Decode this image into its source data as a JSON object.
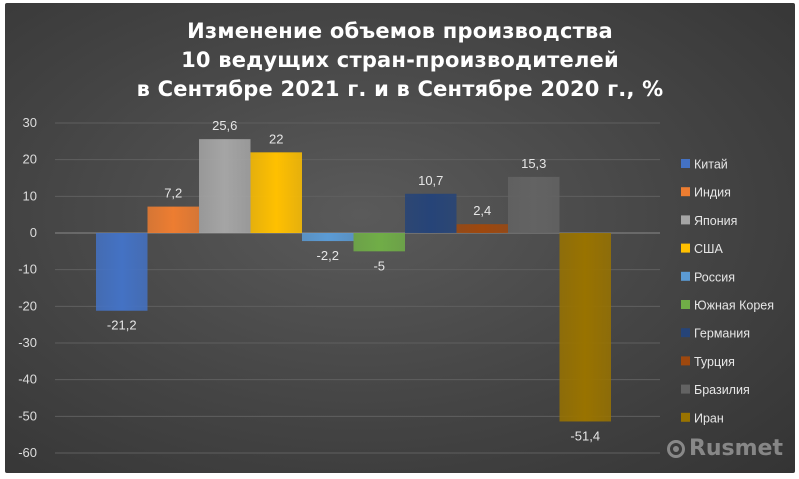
{
  "chart_data": {
    "type": "bar",
    "title_lines": [
      "Изменение объемов производства",
      "10 ведущих стран-производителей",
      "в Сентябре 2021 г. и в Сентябре 2020 г., %"
    ],
    "categories": [
      "Китай",
      "Индия",
      "Япония",
      "США",
      "Россия",
      "Южная Корея",
      "Германия",
      "Турция",
      "Бразилия",
      "Иран"
    ],
    "values": [
      -21.2,
      7.2,
      25.6,
      22,
      -2.2,
      -5,
      10.7,
      2.4,
      15.3,
      -51.4
    ],
    "value_labels": [
      "-21,2",
      "7,2",
      "25,6",
      "22",
      "-2,2",
      "-5",
      "10,7",
      "2,4",
      "15,3",
      "-51,4"
    ],
    "colors": [
      "#4472C4",
      "#ED7D31",
      "#A5A5A5",
      "#FFC000",
      "#5B9BD5",
      "#70AD47",
      "#264478",
      "#9E480E",
      "#636363",
      "#997300"
    ],
    "ylim": [
      -60,
      30
    ],
    "yticks": [
      30,
      20,
      10,
      0,
      -10,
      -20,
      -30,
      -40,
      -50,
      -60
    ],
    "grid": true,
    "legend_position": "right",
    "xlabel": "",
    "ylabel": ""
  },
  "watermark": {
    "text": "Rusmet"
  }
}
